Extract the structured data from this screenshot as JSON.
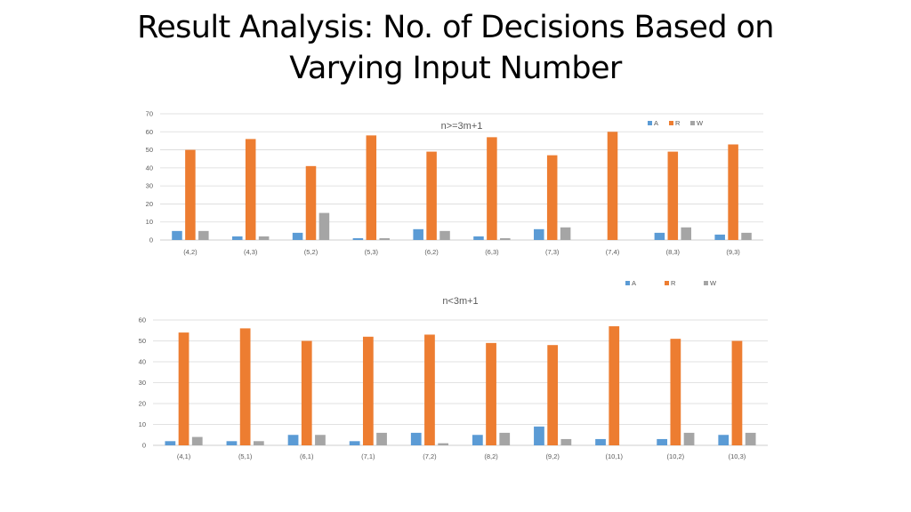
{
  "slide": {
    "title_line1": "Result Analysis: No. of Decisions Based on",
    "title_line2": "Varying Input Number"
  },
  "colors": {
    "A": "#5b9bd5",
    "R": "#ed7d31",
    "W": "#a5a5a5",
    "grid": "#d9d9d9",
    "text": "#595959"
  },
  "chart_data": [
    {
      "type": "bar",
      "title": "n>=3m+1",
      "legend_position": "top-right",
      "grid": true,
      "ylim": [
        0,
        70
      ],
      "yticks": [
        0,
        10,
        20,
        30,
        40,
        50,
        60,
        70
      ],
      "categories": [
        "(4,2)",
        "(4,3)",
        "(5,2)",
        "(5,3)",
        "(6,2)",
        "(6,3)",
        "(7,3)",
        "(7,4)",
        "(8,3)",
        "(9,3)"
      ],
      "series": [
        {
          "name": "A",
          "values": [
            5,
            2,
            4,
            1,
            6,
            2,
            6,
            0,
            4,
            3
          ]
        },
        {
          "name": "R",
          "values": [
            50,
            56,
            41,
            58,
            49,
            57,
            47,
            60,
            49,
            53
          ]
        },
        {
          "name": "W",
          "values": [
            5,
            2,
            15,
            1,
            5,
            1,
            7,
            0,
            7,
            4
          ]
        }
      ]
    },
    {
      "type": "bar",
      "title": "n<3m+1",
      "legend_position": "top-right",
      "grid": true,
      "ylim": [
        0,
        60
      ],
      "yticks": [
        0,
        10,
        20,
        30,
        40,
        50,
        60
      ],
      "categories": [
        "(4,1)",
        "(5,1)",
        "(6,1)",
        "(7,1)",
        "(7,2)",
        "(8,2)",
        "(9,2)",
        "(10,1)",
        "(10,2)",
        "(10,3)"
      ],
      "series": [
        {
          "name": "A",
          "values": [
            2,
            2,
            5,
            2,
            6,
            5,
            9,
            3,
            3,
            5
          ]
        },
        {
          "name": "R",
          "values": [
            54,
            56,
            50,
            52,
            53,
            49,
            48,
            57,
            51,
            50
          ]
        },
        {
          "name": "W",
          "values": [
            4,
            2,
            5,
            6,
            1,
            6,
            3,
            0,
            6,
            6
          ]
        }
      ]
    }
  ]
}
